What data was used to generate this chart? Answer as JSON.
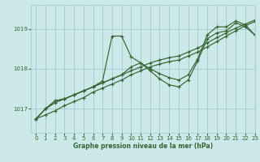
{
  "xlabel": "Graphe pression niveau de la mer (hPa)",
  "background_color": "#cce8e8",
  "grid_color": "#aacccc",
  "line_color": "#336633",
  "xlim": [
    -0.5,
    23
  ],
  "ylim": [
    1016.4,
    1019.6
  ],
  "yticks": [
    1017,
    1018,
    1019
  ],
  "xticks": [
    0,
    1,
    2,
    3,
    4,
    5,
    6,
    7,
    8,
    9,
    10,
    11,
    12,
    13,
    14,
    15,
    16,
    17,
    18,
    19,
    20,
    21,
    22,
    23
  ],
  "series": [
    {
      "x": [
        0,
        1,
        2,
        3,
        4,
        5,
        6,
        7,
        8,
        9,
        10,
        11,
        12,
        13,
        14,
        15,
        16,
        17,
        18,
        19,
        20,
        21,
        22,
        23
      ],
      "y": [
        1016.75,
        1017.0,
        1017.2,
        1017.25,
        1017.35,
        1017.45,
        1017.55,
        1017.7,
        1018.82,
        1018.82,
        1018.3,
        1018.15,
        1018.0,
        1017.88,
        1017.78,
        1017.72,
        1017.85,
        1018.25,
        1018.85,
        1019.05,
        1019.05,
        1019.2,
        1019.1,
        1018.85
      ]
    },
    {
      "x": [
        0,
        1,
        2,
        3,
        4,
        5,
        6,
        7,
        8,
        9,
        10,
        11,
        12,
        13,
        14,
        15,
        16,
        17,
        18,
        19,
        20,
        21,
        22,
        23
      ],
      "y": [
        1016.75,
        1017.0,
        1017.2,
        1017.25,
        1017.35,
        1017.45,
        1017.55,
        1017.65,
        1017.75,
        1017.85,
        1018.05,
        1018.15,
        1017.95,
        1017.75,
        1017.6,
        1017.55,
        1017.72,
        1018.2,
        1018.75,
        1018.9,
        1018.95,
        1019.15,
        1019.05,
        1018.85
      ]
    },
    {
      "x": [
        0,
        1,
        2,
        3,
        4,
        5,
        6,
        7,
        8,
        9,
        10,
        11,
        12,
        13,
        14,
        15,
        16,
        17,
        18,
        19,
        20,
        21,
        22,
        23
      ],
      "y": [
        1016.75,
        1016.85,
        1016.95,
        1017.08,
        1017.18,
        1017.28,
        1017.42,
        1017.52,
        1017.62,
        1017.72,
        1017.85,
        1017.95,
        1018.05,
        1018.12,
        1018.18,
        1018.22,
        1018.32,
        1018.42,
        1018.55,
        1018.68,
        1018.82,
        1018.95,
        1019.08,
        1019.18
      ]
    },
    {
      "x": [
        0,
        1,
        2,
        3,
        4,
        5,
        6,
        7,
        8,
        9,
        10,
        11,
        12,
        13,
        14,
        15,
        16,
        17,
        18,
        19,
        20,
        21,
        22,
        23
      ],
      "y": [
        1016.75,
        1017.0,
        1017.15,
        1017.25,
        1017.35,
        1017.45,
        1017.55,
        1017.65,
        1017.75,
        1017.85,
        1017.95,
        1018.05,
        1018.15,
        1018.22,
        1018.28,
        1018.32,
        1018.42,
        1018.52,
        1018.65,
        1018.78,
        1018.9,
        1019.02,
        1019.12,
        1019.22
      ]
    }
  ]
}
